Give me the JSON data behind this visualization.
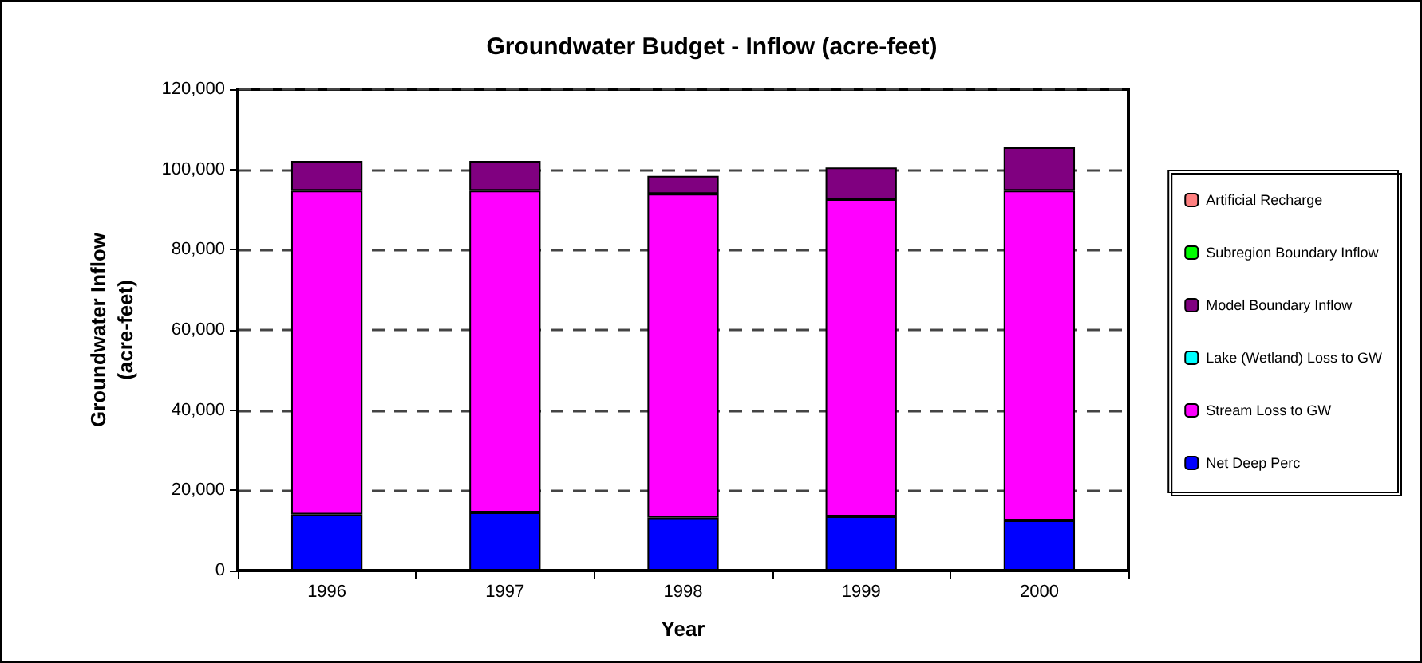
{
  "chart_data": {
    "type": "bar",
    "stacked": true,
    "title": "Groundwater Budget - Inflow (acre-feet)",
    "xlabel": "Year",
    "ylabel": "Groundwater Inflow\n(acre-feet)",
    "categories": [
      "1996",
      "1997",
      "1998",
      "1999",
      "2000"
    ],
    "series": [
      {
        "name": "Net Deep Perc",
        "color": "#0000ff",
        "values": [
          14000,
          14500,
          13200,
          13500,
          12500
        ]
      },
      {
        "name": "Stream Loss to GW",
        "color": "#ff00ff",
        "values": [
          80700,
          80200,
          80700,
          79100,
          82200
        ]
      },
      {
        "name": "Lake (Wetland) Loss to GW",
        "color": "#00ffff",
        "values": [
          0,
          0,
          0,
          0,
          0
        ]
      },
      {
        "name": "Model Boundary Inflow",
        "color": "#800080",
        "values": [
          7400,
          7400,
          4500,
          7900,
          10800
        ]
      },
      {
        "name": "Subregion Boundary Inflow",
        "color": "#00ff00",
        "values": [
          0,
          0,
          0,
          0,
          0
        ]
      },
      {
        "name": "Artificial Recharge",
        "color": "#ff8080",
        "values": [
          0,
          0,
          0,
          0,
          0
        ]
      }
    ],
    "ylim": [
      0,
      120000
    ],
    "yticks": [
      0,
      {
        "value": 20000,
        "label": "20,000"
      },
      {
        "value": 40000,
        "label": "40,000"
      },
      {
        "value": 60000,
        "label": "60,000"
      },
      {
        "value": 80000,
        "label": "80,000"
      },
      {
        "value": 100000,
        "label": "100,000"
      },
      {
        "value": 120000,
        "label": "120,000"
      }
    ],
    "grid": "y",
    "legend": "right"
  }
}
